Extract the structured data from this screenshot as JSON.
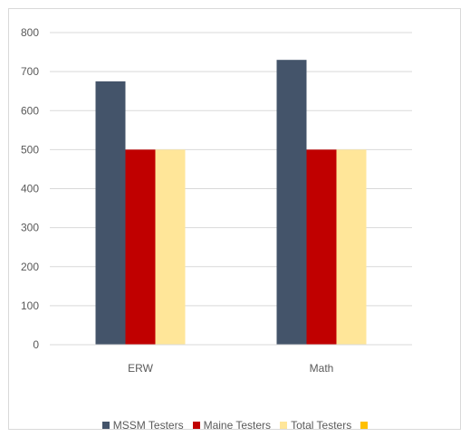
{
  "chart_data": {
    "type": "bar",
    "categories": [
      "ERW",
      "Math"
    ],
    "series": [
      {
        "name": "MSSM Testers",
        "values": [
          675,
          730
        ],
        "color": "#44546a"
      },
      {
        "name": "Maine Testers",
        "values": [
          500,
          500
        ],
        "color": "#c00000"
      },
      {
        "name": "Total Testers",
        "values": [
          500,
          500
        ],
        "color": "#ffe699"
      },
      {
        "name": "",
        "values": [
          0,
          0
        ],
        "color": "#ffc000"
      }
    ],
    "ylim": [
      0,
      800
    ],
    "yticks": [
      0,
      100,
      200,
      300,
      400,
      500,
      600,
      700,
      800
    ],
    "grid": true,
    "legend": "bottom",
    "title": "",
    "xlabel": "",
    "ylabel": ""
  }
}
